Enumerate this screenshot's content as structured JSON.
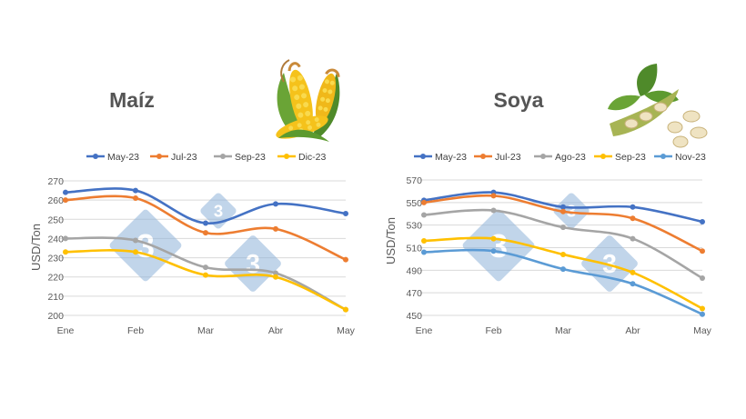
{
  "charts": [
    {
      "title": "Maíz",
      "illustration": "corn-cobs-illustration",
      "chart_data": {
        "type": "line",
        "ylabel": "USD/Ton",
        "x": [
          "Ene",
          "Feb",
          "Mar",
          "Abr",
          "May"
        ],
        "ylim": [
          200,
          270
        ],
        "yticks": [
          200,
          210,
          220,
          230,
          240,
          250,
          260,
          270
        ],
        "grid": true,
        "legend": "top",
        "series": [
          {
            "name": "May-23",
            "color": "#4472c4",
            "values": [
              264,
              265,
              248,
              258,
              253
            ]
          },
          {
            "name": "Jul-23",
            "color": "#ed7d31",
            "values": [
              260,
              261,
              243,
              245,
              229
            ]
          },
          {
            "name": "Sep-23",
            "color": "#a5a5a5",
            "values": [
              240,
              239,
              225,
              222,
              203
            ]
          },
          {
            "name": "Dic-23",
            "color": "#ffc000",
            "values": [
              233,
              233,
              221,
              220,
              203
            ]
          }
        ]
      }
    },
    {
      "title": "Soya",
      "illustration": "soybean-pods-illustration",
      "chart_data": {
        "type": "line",
        "ylabel": "USD/Ton",
        "x": [
          "Ene",
          "Feb",
          "Mar",
          "Abr",
          "May"
        ],
        "ylim": [
          450,
          570
        ],
        "yticks": [
          450,
          470,
          490,
          510,
          530,
          550,
          570
        ],
        "grid": true,
        "legend": "top",
        "series": [
          {
            "name": "May-23",
            "color": "#4472c4",
            "values": [
              552,
              559,
              546,
              546,
              533
            ]
          },
          {
            "name": "Jul-23",
            "color": "#ed7d31",
            "values": [
              550,
              556,
              542,
              536,
              507
            ]
          },
          {
            "name": "Ago-23",
            "color": "#a5a5a5",
            "values": [
              539,
              543,
              528,
              518,
              483
            ]
          },
          {
            "name": "Sep-23",
            "color": "#ffc000",
            "values": [
              516,
              518,
              504,
              488,
              456
            ]
          },
          {
            "name": "Nov-23",
            "color": "#5b9bd5",
            "values": [
              506,
              507,
              491,
              478,
              451
            ]
          }
        ]
      }
    }
  ],
  "watermark": {
    "logo": "333-logo-watermark",
    "color": "#8fb3d9"
  }
}
